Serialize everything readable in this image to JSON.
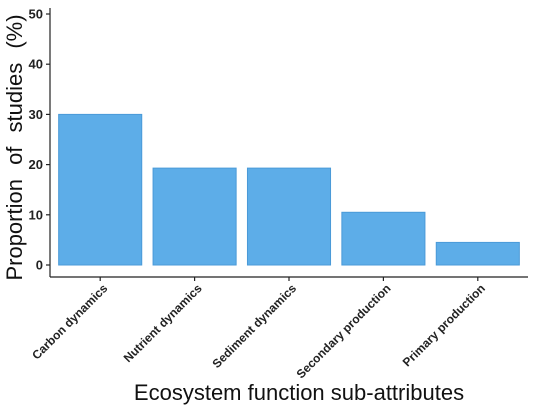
{
  "chart_data": {
    "type": "bar",
    "categories": [
      "Carbon dynamics",
      "Nutrient dynamics",
      "Sediment dynamics",
      "Secondary production",
      "Primary production"
    ],
    "values": [
      30,
      19.3,
      19.3,
      10.5,
      4.5
    ],
    "xlabel": "Ecosystem function sub-attributes",
    "ylabel": "Proportion of studies (%)",
    "ylim": [
      0,
      52
    ],
    "yticks": [
      0,
      10,
      20,
      30,
      40,
      50
    ],
    "grid": false,
    "bar_color": "#5dade8",
    "bar_edge_color": "#4a9ad8"
  }
}
